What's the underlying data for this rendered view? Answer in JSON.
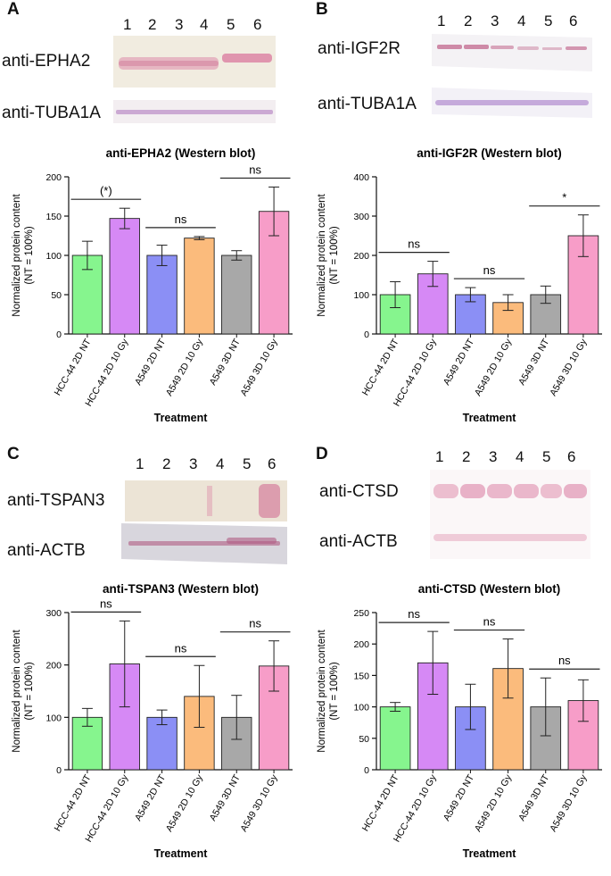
{
  "panels": [
    {
      "label": "A",
      "blot": {
        "lanes": [
          "1",
          "2",
          "3",
          "4",
          "5",
          "6"
        ],
        "antibodies": [
          "anti-EPHA2",
          "anti-TUBA1A"
        ]
      },
      "chart_data": {
        "type": "bar",
        "title": "anti-EPHA2 (Western blot)",
        "xlabel": "Treatment",
        "ylabel": "Normalized protein content (NT = 100%)",
        "ylabel_lines": [
          "Normalized protein content",
          "(NT = 100%)"
        ],
        "ylim": [
          0,
          200
        ],
        "yticks": [
          0,
          50,
          100,
          150,
          200
        ],
        "categories": [
          "HCC-44 2D NT",
          "HCC-44 2D 10 Gy",
          "A549 2D NT",
          "A549 2D 10 Gy",
          "A549 3D NT",
          "A549 3D 10 Gy"
        ],
        "values": [
          100,
          147,
          100,
          122,
          100,
          156
        ],
        "errors": [
          18,
          13,
          13,
          2,
          6,
          31
        ],
        "significance": [
          "(*)",
          "ns",
          "ns"
        ]
      }
    },
    {
      "label": "B",
      "blot": {
        "lanes": [
          "1",
          "2",
          "3",
          "4",
          "5",
          "6"
        ],
        "antibodies": [
          "anti-IGF2R",
          "anti-TUBA1A"
        ]
      },
      "chart_data": {
        "type": "bar",
        "title": "anti-IGF2R (Western blot)",
        "xlabel": "Treatment",
        "ylabel": "Normalized protein content (NT = 100%)",
        "ylabel_lines": [
          "Normalized protein content",
          "(NT = 100%)"
        ],
        "ylim": [
          0,
          400
        ],
        "yticks": [
          0,
          100,
          200,
          300,
          400
        ],
        "categories": [
          "HCC-44 2D NT",
          "HCC-44 2D 10 Gy",
          "A549 2D NT",
          "A549 2D 10 Gy",
          "A549 3D NT",
          "A549 3D 10 Gy"
        ],
        "values": [
          100,
          153,
          100,
          80,
          100,
          250
        ],
        "errors": [
          33,
          32,
          18,
          20,
          22,
          53
        ],
        "significance": [
          "ns",
          "ns",
          "*"
        ]
      }
    },
    {
      "label": "C",
      "blot": {
        "lanes": [
          "1",
          "2",
          "3",
          "4",
          "5",
          "6"
        ],
        "antibodies": [
          "anti-TSPAN3",
          "anti-ACTB"
        ]
      },
      "chart_data": {
        "type": "bar",
        "title": "anti-TSPAN3 (Western blot)",
        "xlabel": "Treatment",
        "ylabel": "Normalized protein content (NT = 100%)",
        "ylabel_lines": [
          "Normalized protein content",
          "(NT = 100%)"
        ],
        "ylim": [
          0,
          300
        ],
        "yticks": [
          0,
          100,
          200,
          300
        ],
        "categories": [
          "HCC-44 2D NT",
          "HCC-44 2D 10 Gy",
          "A549 2D NT",
          "A549 2D 10 Gy",
          "A549 3D NT",
          "A549 3D 10 Gy"
        ],
        "values": [
          100,
          202,
          100,
          140,
          100,
          198
        ],
        "errors": [
          17,
          82,
          14,
          59,
          42,
          48
        ],
        "significance": [
          "ns",
          "ns",
          "ns"
        ]
      }
    },
    {
      "label": "D",
      "blot": {
        "lanes": [
          "1",
          "2",
          "3",
          "4",
          "5",
          "6"
        ],
        "antibodies": [
          "anti-CTSD",
          "anti-ACTB"
        ]
      },
      "chart_data": {
        "type": "bar",
        "title": "anti-CTSD (Western blot)",
        "xlabel": "Treatment",
        "ylabel": "Normalized protein content (NT = 100%)",
        "ylabel_lines": [
          "Normalized protein content",
          "(NT = 100%)"
        ],
        "ylim": [
          0,
          250
        ],
        "yticks": [
          0,
          50,
          100,
          150,
          200,
          250
        ],
        "categories": [
          "HCC-44 2D NT",
          "HCC-44 2D 10 Gy",
          "A549 2D NT",
          "A549 2D 10 Gy",
          "A549 3D NT",
          "A549 3D 10 Gy"
        ],
        "values": [
          100,
          170,
          100,
          161,
          100,
          110
        ],
        "errors": [
          7,
          50,
          36,
          47,
          46,
          33
        ],
        "significance": [
          "ns",
          "ns",
          "ns"
        ]
      }
    }
  ],
  "colors": {
    "bars": [
      "#86f58e",
      "#d689f5",
      "#8b8ff5",
      "#fbbb7c",
      "#a8a8a8",
      "#f79dc8"
    ],
    "axis": "#111111",
    "band_pink": "#d9789e",
    "band_purple": "#b98cc6"
  }
}
